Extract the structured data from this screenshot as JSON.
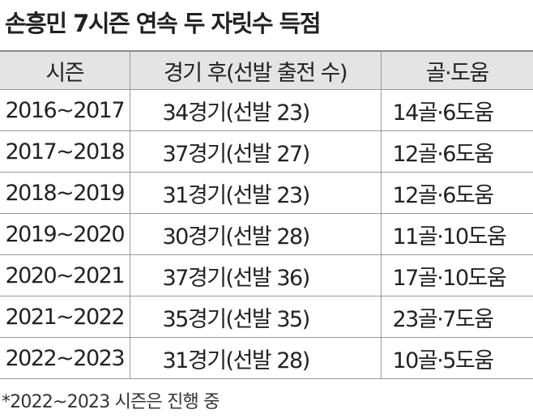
{
  "title": "손흥민 7시즌 연속 두 자릿수 득점",
  "table": {
    "header": [
      "시즌",
      "경기 후(선발 출전 수)",
      "골·도움"
    ],
    "rows": [
      [
        "2016~2017",
        "34경기(선발 23)",
        "14골·6도움"
      ],
      [
        "2017~2018",
        "37경기(선발 27)",
        "12골·6도움"
      ],
      [
        "2018~2019",
        "31경기(선발 23)",
        "12골·6도움"
      ],
      [
        "2019~2020",
        "30경기(선발 28)",
        "11골·10도움"
      ],
      [
        "2020~2021",
        "37경기(선발 36)",
        "17골·10도움"
      ],
      [
        "2021~2022",
        "35경기(선발 35)",
        "23골·7도움"
      ],
      [
        "2022~2023",
        "31경기(선발 28)",
        "10골·5도움"
      ]
    ]
  },
  "footnote": "*2022~2023 시즌은 진행 중"
}
